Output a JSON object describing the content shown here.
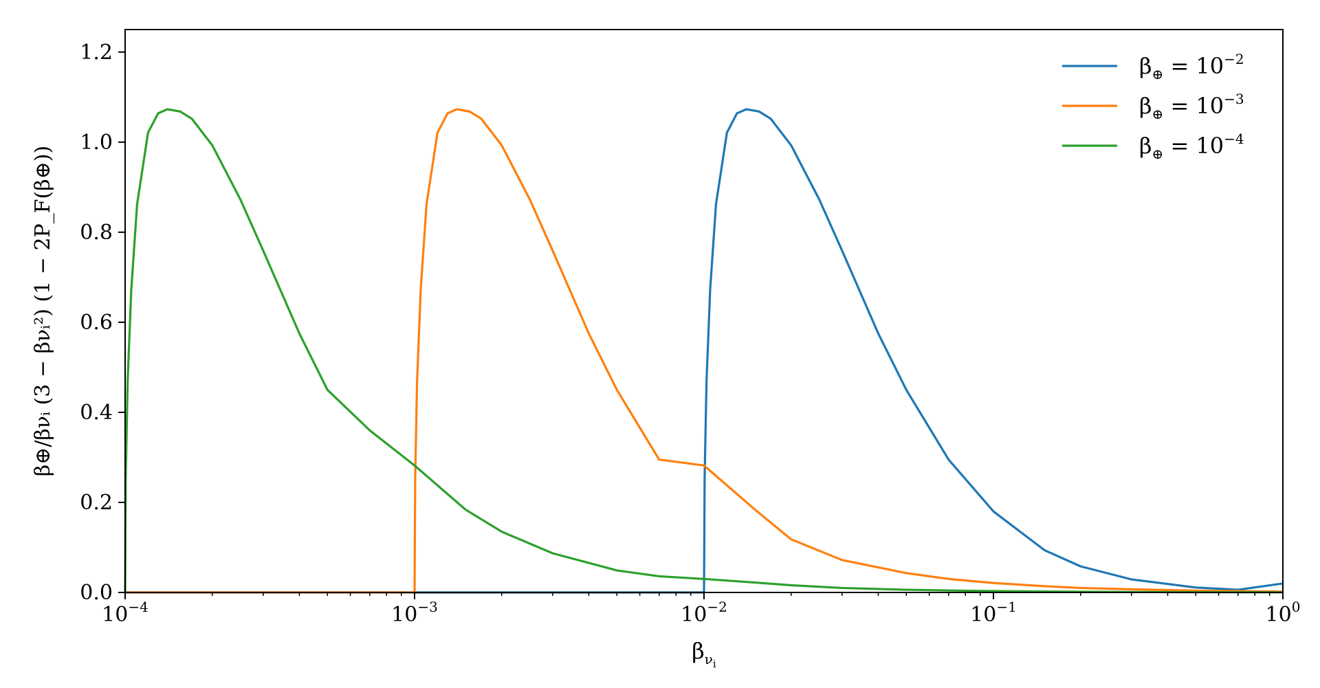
{
  "chart_data": {
    "type": "line",
    "xscale": "log",
    "xlim": [
      0.0001,
      1
    ],
    "ylim": [
      0,
      1.25
    ],
    "grid": false,
    "legend_position": "top-right",
    "xlabel": {
      "base": "β",
      "sub": "ν",
      "subsub": "i"
    },
    "ylabel": "β⊕/βνᵢ (3 − βνᵢ²) (1 − 2P_F(β⊕))",
    "x_ticks": [
      {
        "value": 0.0001,
        "base": "10",
        "exp": "−4"
      },
      {
        "value": 0.001,
        "base": "10",
        "exp": "−3"
      },
      {
        "value": 0.01,
        "base": "10",
        "exp": "−2"
      },
      {
        "value": 0.1,
        "base": "10",
        "exp": "−1"
      },
      {
        "value": 1,
        "base": "10",
        "exp": "0"
      }
    ],
    "y_ticks": [
      {
        "value": 0.0,
        "label": "0.0"
      },
      {
        "value": 0.2,
        "label": "0.2"
      },
      {
        "value": 0.4,
        "label": "0.4"
      },
      {
        "value": 0.6,
        "label": "0.6"
      },
      {
        "value": 0.8,
        "label": "0.8"
      },
      {
        "value": 1.0,
        "label": "1.0"
      },
      {
        "value": 1.2,
        "label": "1.2"
      }
    ],
    "series": [
      {
        "name_base": "β",
        "name_sub": "⊕",
        "name_eq": " = 10",
        "name_exp": "−2",
        "beta_e": 0.01,
        "color": "#1f77b4",
        "x": [
          0.0001,
          0.001,
          0.00999,
          0.01,
          0.01005,
          0.0102,
          0.0105,
          0.011,
          0.012,
          0.013,
          0.014,
          0.0155,
          0.017,
          0.02,
          0.025,
          0.03,
          0.04,
          0.05,
          0.07,
          0.1,
          0.15,
          0.2,
          0.3,
          0.5,
          0.7,
          1.0
        ],
        "y": [
          0,
          0,
          0,
          0,
          0.254,
          0.467,
          0.672,
          0.862,
          1.021,
          1.064,
          1.073,
          1.068,
          1.052,
          0.993,
          0.873,
          0.759,
          0.575,
          0.45,
          0.295,
          0.18,
          0.094,
          0.058,
          0.029,
          0.011,
          0.006,
          0.02
        ]
      },
      {
        "name_base": "β",
        "name_sub": "⊕",
        "name_eq": " = 10",
        "name_exp": "−3",
        "beta_e": 0.001,
        "color": "#ff7f0e",
        "x": [
          0.0001,
          0.000999,
          0.001,
          0.001005,
          0.00102,
          0.00105,
          0.0011,
          0.0012,
          0.0013,
          0.0014,
          0.00155,
          0.0017,
          0.002,
          0.0025,
          0.003,
          0.004,
          0.005,
          0.007,
          0.01,
          0.015,
          0.02,
          0.03,
          0.05,
          0.07,
          0.1,
          0.15,
          0.2,
          0.3,
          0.5,
          1.0
        ],
        "y": [
          0,
          0,
          0,
          0.254,
          0.467,
          0.672,
          0.862,
          1.021,
          1.064,
          1.073,
          1.068,
          1.052,
          0.993,
          0.873,
          0.759,
          0.575,
          0.45,
          0.295,
          0.282,
          0.184,
          0.118,
          0.072,
          0.043,
          0.03,
          0.021,
          0.014,
          0.01,
          0.007,
          0.004,
          0.002
        ]
      },
      {
        "name_base": "β",
        "name_sub": "⊕",
        "name_eq": " = 10",
        "name_exp": "−4",
        "beta_e": 0.0001,
        "color": "#2ca02c",
        "x": [
          0.0001,
          0.0001005,
          0.000102,
          0.000105,
          0.00011,
          0.00012,
          0.00013,
          0.00014,
          0.000155,
          0.00017,
          0.0002,
          0.00025,
          0.0003,
          0.0004,
          0.0005,
          0.0007,
          0.001,
          0.0015,
          0.002,
          0.003,
          0.005,
          0.007,
          0.01,
          0.015,
          0.02,
          0.03,
          0.05,
          0.1,
          0.2,
          0.5,
          1.0
        ],
        "y": [
          0,
          0.254,
          0.467,
          0.672,
          0.862,
          1.021,
          1.064,
          1.073,
          1.068,
          1.052,
          0.993,
          0.873,
          0.759,
          0.575,
          0.45,
          0.36,
          0.282,
          0.184,
          0.135,
          0.087,
          0.049,
          0.036,
          0.03,
          0.022,
          0.016,
          0.01,
          0.006,
          0.003,
          0.0015,
          0.0006,
          0.0003
        ]
      }
    ]
  }
}
